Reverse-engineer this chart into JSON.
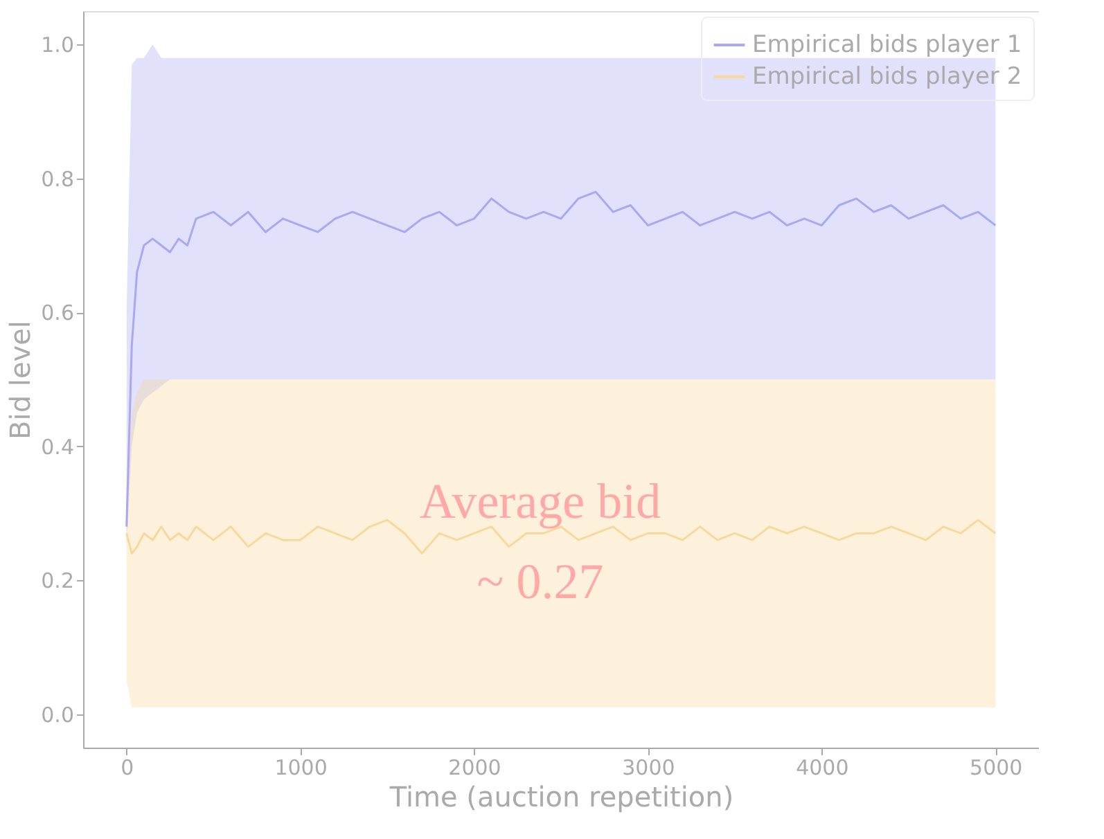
{
  "chart_data": {
    "type": "line",
    "xlabel": "Time (auction repetition)",
    "ylabel": "Bid level",
    "xlim": [
      -250,
      5250
    ],
    "xticks": [
      {
        "value": 0,
        "label": "0"
      },
      {
        "value": 1000,
        "label": "1000"
      },
      {
        "value": 2000,
        "label": "2000"
      },
      {
        "value": 3000,
        "label": "3000"
      },
      {
        "value": 4000,
        "label": "4000"
      },
      {
        "value": 5000,
        "label": "5000"
      }
    ],
    "ylim": [
      -0.05,
      1.05
    ],
    "yticks": [
      {
        "value": 0,
        "label": "0.0"
      },
      0.2,
      0.4,
      0.6,
      0.8,
      {
        "value": 1,
        "label": "1.0"
      }
    ],
    "grid": false,
    "legend": "top right",
    "line_style": "solid",
    "marker": "none",
    "annotations": [
      "Average bid\n~ 0.27"
    ],
    "x": [
      0,
      30,
      60,
      100,
      150,
      200,
      250,
      300,
      350,
      400,
      500,
      600,
      700,
      800,
      900,
      1000,
      1100,
      1200,
      1300,
      1400,
      1500,
      1600,
      1700,
      1800,
      1900,
      2000,
      2100,
      2200,
      2300,
      2400,
      2500,
      2600,
      2700,
      2800,
      2900,
      3000,
      3100,
      3200,
      3300,
      3400,
      3500,
      3600,
      3700,
      3800,
      3900,
      4000,
      4100,
      4200,
      4300,
      4400,
      4500,
      4600,
      4700,
      4800,
      4900,
      5000
    ],
    "series": [
      {
        "name": "Empirical bids player 1",
        "color": "#a8a8f4",
        "values": [
          0.28,
          0.55,
          0.66,
          0.7,
          0.71,
          0.7,
          0.69,
          0.71,
          0.7,
          0.74,
          0.75,
          0.73,
          0.75,
          0.72,
          0.74,
          0.73,
          0.72,
          0.74,
          0.75,
          0.74,
          0.73,
          0.72,
          0.74,
          0.75,
          0.73,
          0.74,
          0.77,
          0.75,
          0.74,
          0.75,
          0.74,
          0.77,
          0.78,
          0.75,
          0.76,
          0.73,
          0.74,
          0.75,
          0.73,
          0.74,
          0.75,
          0.74,
          0.75,
          0.73,
          0.74,
          0.73,
          0.76,
          0.77,
          0.75,
          0.76,
          0.74,
          0.75,
          0.76,
          0.74,
          0.75,
          0.73
        ],
        "lower": [
          0.25,
          0.4,
          0.45,
          0.47,
          0.48,
          0.49,
          0.5,
          0.5,
          0.5,
          0.5,
          0.5,
          0.5,
          0.5,
          0.5,
          0.5,
          0.5,
          0.5,
          0.5,
          0.5,
          0.5,
          0.5,
          0.5,
          0.5,
          0.5,
          0.5,
          0.5,
          0.5,
          0.5,
          0.5,
          0.5,
          0.5,
          0.5,
          0.5,
          0.5,
          0.5,
          0.5,
          0.5,
          0.5,
          0.5,
          0.5,
          0.5,
          0.5,
          0.5,
          0.5,
          0.5,
          0.5,
          0.5,
          0.5,
          0.5,
          0.5,
          0.5,
          0.5,
          0.5,
          0.5,
          0.5,
          0.5
        ],
        "upper": [
          0.6,
          0.97,
          0.98,
          0.98,
          1.0,
          0.98,
          0.98,
          0.98,
          0.98,
          0.98,
          0.98,
          0.98,
          0.98,
          0.98,
          0.98,
          0.98,
          0.98,
          0.98,
          0.98,
          0.98,
          0.98,
          0.98,
          0.98,
          0.98,
          0.98,
          0.98,
          0.98,
          0.98,
          0.98,
          0.98,
          0.98,
          0.98,
          0.98,
          0.98,
          0.98,
          0.98,
          0.98,
          0.98,
          0.98,
          0.98,
          0.98,
          0.98,
          0.98,
          0.98,
          0.98,
          0.98,
          0.98,
          0.98,
          0.98,
          0.98,
          0.98,
          0.98,
          0.98,
          0.98,
          0.98,
          0.98
        ]
      },
      {
        "name": "Empirical bids player 2",
        "color": "#f8d89c",
        "values": [
          0.27,
          0.24,
          0.25,
          0.27,
          0.26,
          0.28,
          0.26,
          0.27,
          0.26,
          0.28,
          0.26,
          0.28,
          0.25,
          0.27,
          0.26,
          0.26,
          0.28,
          0.27,
          0.26,
          0.28,
          0.29,
          0.27,
          0.24,
          0.27,
          0.26,
          0.27,
          0.28,
          0.25,
          0.27,
          0.27,
          0.28,
          0.26,
          0.27,
          0.28,
          0.26,
          0.27,
          0.27,
          0.26,
          0.28,
          0.26,
          0.27,
          0.26,
          0.28,
          0.27,
          0.28,
          0.27,
          0.26,
          0.27,
          0.27,
          0.28,
          0.27,
          0.26,
          0.28,
          0.27,
          0.29,
          0.27
        ],
        "lower": [
          0.05,
          0.01,
          0.01,
          0.01,
          0.01,
          0.01,
          0.01,
          0.01,
          0.01,
          0.01,
          0.01,
          0.01,
          0.01,
          0.01,
          0.01,
          0.01,
          0.01,
          0.01,
          0.01,
          0.01,
          0.01,
          0.01,
          0.01,
          0.01,
          0.01,
          0.01,
          0.01,
          0.01,
          0.01,
          0.01,
          0.01,
          0.01,
          0.01,
          0.01,
          0.01,
          0.01,
          0.01,
          0.01,
          0.01,
          0.01,
          0.01,
          0.01,
          0.01,
          0.01,
          0.01,
          0.01,
          0.01,
          0.01,
          0.01,
          0.01,
          0.01,
          0.01,
          0.01,
          0.01,
          0.01,
          0.01
        ],
        "upper": [
          0.3,
          0.45,
          0.48,
          0.5,
          0.5,
          0.5,
          0.5,
          0.5,
          0.5,
          0.5,
          0.5,
          0.5,
          0.5,
          0.5,
          0.5,
          0.5,
          0.5,
          0.5,
          0.5,
          0.5,
          0.5,
          0.5,
          0.5,
          0.5,
          0.5,
          0.5,
          0.5,
          0.5,
          0.5,
          0.5,
          0.5,
          0.5,
          0.5,
          0.5,
          0.5,
          0.5,
          0.5,
          0.5,
          0.5,
          0.5,
          0.5,
          0.5,
          0.5,
          0.5,
          0.5,
          0.5,
          0.5,
          0.5,
          0.5,
          0.5,
          0.5,
          0.5,
          0.5,
          0.5,
          0.5,
          0.5
        ]
      }
    ]
  }
}
